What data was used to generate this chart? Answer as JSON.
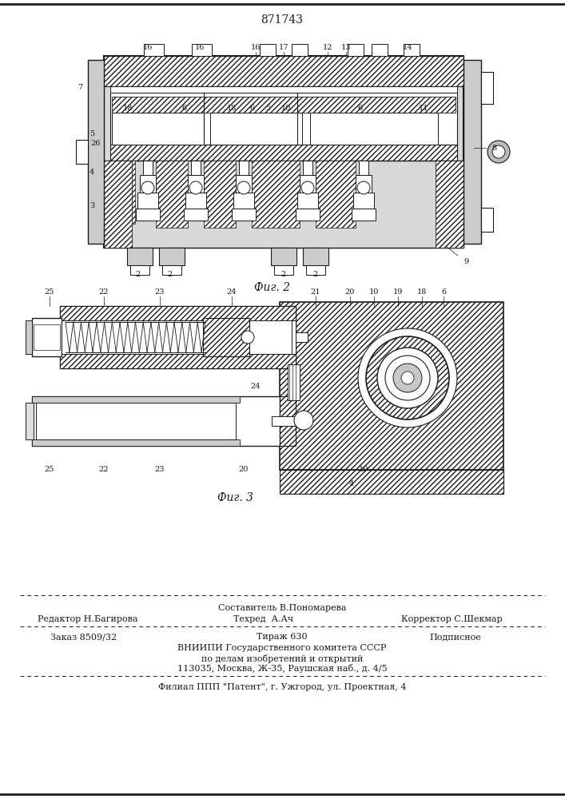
{
  "patent_number": "871743",
  "fig2_caption": "Фиг. 2",
  "fig3_caption": "Фиг. 3",
  "footer_sestavitel": "Составитель В.Пономарева",
  "footer_redaktor": "Редактор Н.Багирова",
  "footer_tehred": "Техред  А.Ач",
  "footer_korrektor": "Корректор С.Шекмар",
  "footer_zakaz": "Заказ 8509/32",
  "footer_tirazh": "Тираж 630",
  "footer_podpisnoe": "Подписное",
  "footer_vniipи": "ВНИИПИ Государственного комитета СССР",
  "footer_dela": "по делам изобретений и открытий",
  "footer_addr": "113035, Москва, Ж-35, Раушская наб., д. 4/5",
  "footer_filial": "Филиал ППП \"Патент\", г. Ужгород, ул. Проектная, 4",
  "bg_color": "#ffffff",
  "line_color": "#1a1a1a"
}
